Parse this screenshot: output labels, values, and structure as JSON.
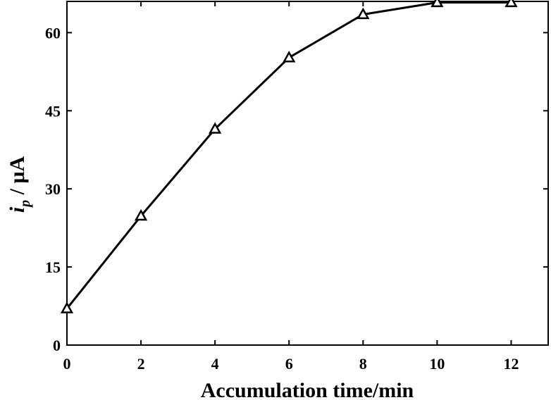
{
  "chart_data": {
    "type": "line",
    "title": "",
    "xlabel": "Accumulation time/min",
    "ylabel": {
      "main": "i",
      "subscript": "p",
      "unit": " / μA"
    },
    "x": [
      0,
      2,
      4,
      6,
      8,
      10,
      12
    ],
    "series": [
      {
        "marker": "open-triangle",
        "color": "#000000",
        "values": [
          7.0,
          24.8,
          41.5,
          55.2,
          63.5,
          65.8,
          65.8
        ]
      }
    ],
    "xlim": [
      0,
      13
    ],
    "ylim": [
      0,
      66
    ],
    "xticks": [
      0,
      2,
      4,
      6,
      8,
      10,
      12
    ],
    "yticks": [
      0,
      15,
      30,
      45,
      60
    ],
    "grid": false,
    "legend": "none"
  }
}
